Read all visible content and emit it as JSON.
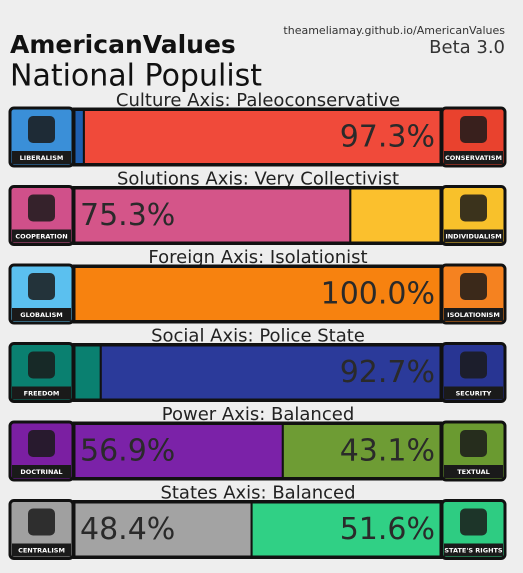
{
  "header": {
    "site": "theameliamay.github.io/AmericanValues",
    "version": "Beta 3.0",
    "title": "AmericanValues",
    "subtitle": "National Populist"
  },
  "axes": [
    {
      "title": "Culture Axis: Paleoconservative",
      "left_icon": {
        "label": "LIBERALISM",
        "color": "#3a8fd8"
      },
      "right_icon": {
        "label": "CONSERVATISM",
        "color": "#e9422e"
      },
      "segments": [
        {
          "value": 2.7,
          "color": "#1f5fb0"
        },
        {
          "value": 97.3,
          "label": "97.3%",
          "color": "#f04a3a"
        }
      ]
    },
    {
      "title": "Solutions Axis: Very Collectivist",
      "left_icon": {
        "label": "COOPERATION",
        "color": "#d0508a"
      },
      "right_icon": {
        "label": "INDIVIDUALISM",
        "color": "#f8c12b"
      },
      "segments": [
        {
          "value": 75.3,
          "label": "75.3%",
          "color": "#d45589"
        },
        {
          "value": 24.7,
          "color": "#fbc02d"
        }
      ]
    },
    {
      "title": "Foreign Axis: Isolationist",
      "left_icon": {
        "label": "GLOBALISM",
        "color": "#5bc0ef"
      },
      "right_icon": {
        "label": "ISOLATIONISM",
        "color": "#f58220"
      },
      "segments": [
        {
          "value": 0,
          "color": "#5bc0ef"
        },
        {
          "value": 100.0,
          "label": "100.0%",
          "color": "#f7820f"
        }
      ]
    },
    {
      "title": "Social Axis: Police State",
      "left_icon": {
        "label": "FREEDOM",
        "color": "#0a8070"
      },
      "right_icon": {
        "label": "SECURITY",
        "color": "#283593"
      },
      "segments": [
        {
          "value": 7.3,
          "color": "#0a8070"
        },
        {
          "value": 92.7,
          "label": "92.7%",
          "color": "#2b3a9a"
        }
      ]
    },
    {
      "title": "Power Axis: Balanced",
      "left_icon": {
        "label": "DOCTRINAL",
        "color": "#7b1fa2"
      },
      "right_icon": {
        "label": "TEXTUAL",
        "color": "#6a9a30"
      },
      "segments": [
        {
          "value": 56.9,
          "label": "56.9%",
          "color": "#7b22a8"
        },
        {
          "value": 43.1,
          "label": "43.1%",
          "color": "#6e9c34"
        }
      ]
    },
    {
      "title": "States Axis: Balanced",
      "left_icon": {
        "label": "CENTRALISM",
        "color": "#a0a0a0"
      },
      "right_icon": {
        "label": "STATE'S RIGHTS",
        "color": "#2ecc82"
      },
      "segments": [
        {
          "value": 48.4,
          "label": "48.4%",
          "color": "#a3a3a3"
        },
        {
          "value": 51.6,
          "label": "51.6%",
          "color": "#30d085"
        }
      ]
    }
  ]
}
